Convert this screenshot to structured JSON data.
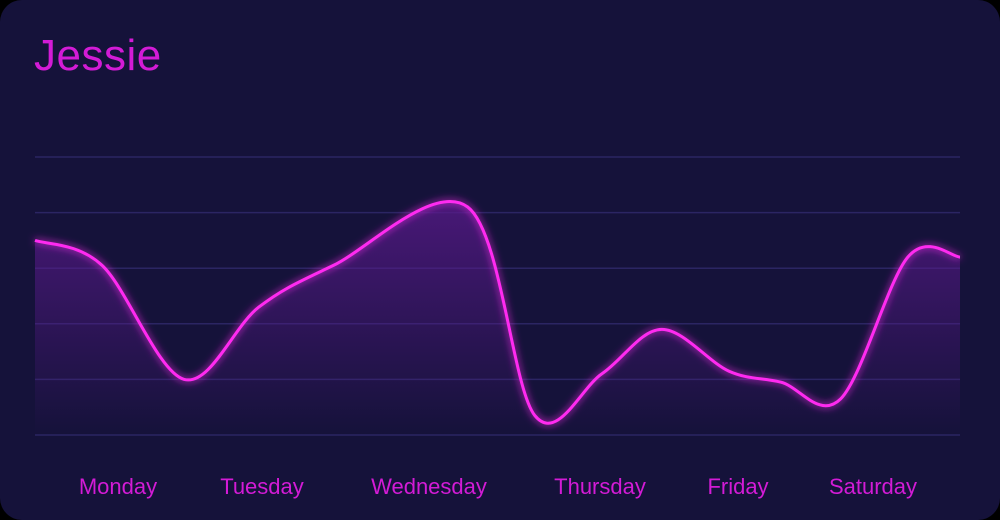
{
  "card": {
    "title": "Jessie"
  },
  "colors": {
    "background": "#15123a",
    "line": "#ff2bf0",
    "text": "#d31bd6",
    "grid": "#2b2563",
    "fill_top": "#5a1a8c"
  },
  "chart_data": {
    "type": "area",
    "title": "Jessie",
    "xlabel": "",
    "ylabel": "",
    "categories": [
      "Monday",
      "Tuesday",
      "Wednesday",
      "Thursday",
      "Friday",
      "Saturday"
    ],
    "x": [
      0,
      0.45,
      1.0,
      1.5,
      2.0,
      2.9,
      3.35,
      3.8,
      4.2,
      4.65,
      5.0,
      5.4,
      5.85,
      6.2
    ],
    "values": [
      3.5,
      3.05,
      1.0,
      2.3,
      3.05,
      4.1,
      0.35,
      1.1,
      1.9,
      1.15,
      0.95,
      0.65,
      3.2,
      3.2
    ],
    "ylim": [
      0,
      5
    ],
    "grid": true,
    "legend": "none",
    "smooth": true
  }
}
